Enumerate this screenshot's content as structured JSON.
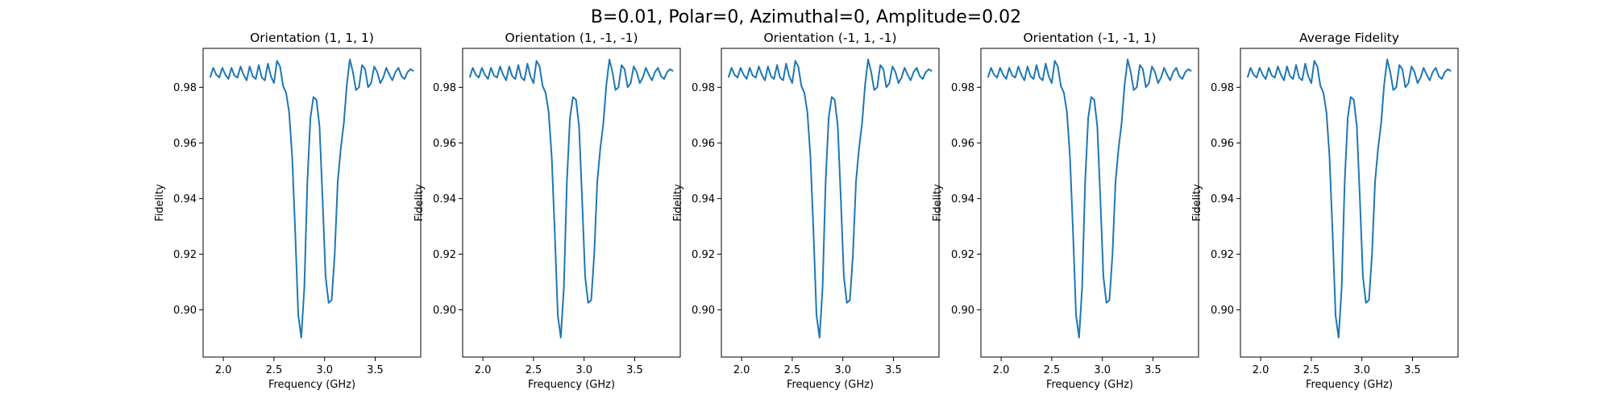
{
  "figure": {
    "suptitle": "B=0.01, Polar=0, Azimuthal=0, Amplitude=0.02"
  },
  "chart_data": [
    {
      "type": "line",
      "title": "Orientation (1, 1, 1)",
      "xlabel": "Frequency (GHz)",
      "ylabel": "Fidelity",
      "xlim": [
        1.8,
        3.95
      ],
      "ylim": [
        0.883,
        0.994
      ],
      "xticks": [
        2.0,
        2.5,
        3.0,
        3.5
      ],
      "xtick_labels": [
        "2.0",
        "2.5",
        "3.0",
        "3.5"
      ],
      "yticks": [
        0.9,
        0.92,
        0.94,
        0.96,
        0.98
      ],
      "ytick_labels": [
        "0.90",
        "0.92",
        "0.94",
        "0.96",
        "0.98"
      ],
      "grid": false,
      "series": [
        {
          "color": "#1f77b4",
          "x": [
            1.87,
            1.9,
            1.93,
            1.96,
            1.99,
            2.02,
            2.05,
            2.08,
            2.11,
            2.14,
            2.17,
            2.2,
            2.23,
            2.26,
            2.29,
            2.32,
            2.35,
            2.38,
            2.41,
            2.44,
            2.47,
            2.5,
            2.53,
            2.56,
            2.59,
            2.62,
            2.65,
            2.68,
            2.71,
            2.74,
            2.77,
            2.8,
            2.83,
            2.86,
            2.89,
            2.92,
            2.95,
            2.98,
            3.01,
            3.04,
            3.07,
            3.1,
            3.13,
            3.16,
            3.19,
            3.22,
            3.25,
            3.28,
            3.31,
            3.34,
            3.37,
            3.4,
            3.43,
            3.46,
            3.49,
            3.52,
            3.55,
            3.58,
            3.61,
            3.64,
            3.67,
            3.7,
            3.73,
            3.76,
            3.79,
            3.82,
            3.85,
            3.88
          ],
          "y": [
            0.9835,
            0.987,
            0.9845,
            0.9835,
            0.987,
            0.9845,
            0.983,
            0.987,
            0.9842,
            0.9835,
            0.9875,
            0.9845,
            0.9825,
            0.9875,
            0.984,
            0.983,
            0.988,
            0.9835,
            0.9825,
            0.9885,
            0.984,
            0.9815,
            0.9895,
            0.9875,
            0.9805,
            0.978,
            0.971,
            0.955,
            0.928,
            0.898,
            0.89,
            0.908,
            0.946,
            0.969,
            0.9765,
            0.9755,
            0.966,
            0.94,
            0.912,
            0.9025,
            0.9035,
            0.92,
            0.946,
            0.958,
            0.967,
            0.981,
            0.99,
            0.9855,
            0.979,
            0.98,
            0.988,
            0.9865,
            0.98,
            0.9815,
            0.9875,
            0.9855,
            0.9815,
            0.9835,
            0.987,
            0.9845,
            0.9825,
            0.9855,
            0.987,
            0.984,
            0.983,
            0.9855,
            0.9865,
            0.9858
          ]
        }
      ]
    },
    {
      "type": "line",
      "title": "Orientation (1, -1, -1)",
      "xlabel": "Frequency (GHz)",
      "ylabel": "Fidelity",
      "xlim": [
        1.8,
        3.95
      ],
      "ylim": [
        0.883,
        0.994
      ],
      "xticks": [
        2.0,
        2.5,
        3.0,
        3.5
      ],
      "xtick_labels": [
        "2.0",
        "2.5",
        "3.0",
        "3.5"
      ],
      "yticks": [
        0.9,
        0.92,
        0.94,
        0.96,
        0.98
      ],
      "ytick_labels": [
        "0.90",
        "0.92",
        "0.94",
        "0.96",
        "0.98"
      ],
      "grid": false,
      "series": [
        {
          "color": "#1f77b4",
          "x": [
            1.87,
            1.9,
            1.93,
            1.96,
            1.99,
            2.02,
            2.05,
            2.08,
            2.11,
            2.14,
            2.17,
            2.2,
            2.23,
            2.26,
            2.29,
            2.32,
            2.35,
            2.38,
            2.41,
            2.44,
            2.47,
            2.5,
            2.53,
            2.56,
            2.59,
            2.62,
            2.65,
            2.68,
            2.71,
            2.74,
            2.77,
            2.8,
            2.83,
            2.86,
            2.89,
            2.92,
            2.95,
            2.98,
            3.01,
            3.04,
            3.07,
            3.1,
            3.13,
            3.16,
            3.19,
            3.22,
            3.25,
            3.28,
            3.31,
            3.34,
            3.37,
            3.4,
            3.43,
            3.46,
            3.49,
            3.52,
            3.55,
            3.58,
            3.61,
            3.64,
            3.67,
            3.7,
            3.73,
            3.76,
            3.79,
            3.82,
            3.85,
            3.88
          ],
          "y": [
            0.9835,
            0.987,
            0.9845,
            0.9835,
            0.987,
            0.9845,
            0.983,
            0.987,
            0.9842,
            0.9835,
            0.9875,
            0.9845,
            0.9825,
            0.9875,
            0.984,
            0.983,
            0.988,
            0.9835,
            0.9825,
            0.9885,
            0.984,
            0.9815,
            0.9895,
            0.9875,
            0.9805,
            0.978,
            0.971,
            0.955,
            0.928,
            0.898,
            0.89,
            0.908,
            0.946,
            0.969,
            0.9765,
            0.9755,
            0.966,
            0.94,
            0.912,
            0.9025,
            0.9035,
            0.92,
            0.946,
            0.958,
            0.967,
            0.981,
            0.99,
            0.9855,
            0.979,
            0.98,
            0.988,
            0.9865,
            0.98,
            0.9815,
            0.9875,
            0.9855,
            0.9815,
            0.9835,
            0.987,
            0.9845,
            0.9825,
            0.9855,
            0.987,
            0.984,
            0.983,
            0.9855,
            0.9865,
            0.9858
          ]
        }
      ]
    },
    {
      "type": "line",
      "title": "Orientation (-1, 1, -1)",
      "xlabel": "Frequency (GHz)",
      "ylabel": "Fidelity",
      "xlim": [
        1.8,
        3.95
      ],
      "ylim": [
        0.883,
        0.994
      ],
      "xticks": [
        2.0,
        2.5,
        3.0,
        3.5
      ],
      "xtick_labels": [
        "2.0",
        "2.5",
        "3.0",
        "3.5"
      ],
      "yticks": [
        0.9,
        0.92,
        0.94,
        0.96,
        0.98
      ],
      "ytick_labels": [
        "0.90",
        "0.92",
        "0.94",
        "0.96",
        "0.98"
      ],
      "grid": false,
      "series": [
        {
          "color": "#1f77b4",
          "x": [
            1.87,
            1.9,
            1.93,
            1.96,
            1.99,
            2.02,
            2.05,
            2.08,
            2.11,
            2.14,
            2.17,
            2.2,
            2.23,
            2.26,
            2.29,
            2.32,
            2.35,
            2.38,
            2.41,
            2.44,
            2.47,
            2.5,
            2.53,
            2.56,
            2.59,
            2.62,
            2.65,
            2.68,
            2.71,
            2.74,
            2.77,
            2.8,
            2.83,
            2.86,
            2.89,
            2.92,
            2.95,
            2.98,
            3.01,
            3.04,
            3.07,
            3.1,
            3.13,
            3.16,
            3.19,
            3.22,
            3.25,
            3.28,
            3.31,
            3.34,
            3.37,
            3.4,
            3.43,
            3.46,
            3.49,
            3.52,
            3.55,
            3.58,
            3.61,
            3.64,
            3.67,
            3.7,
            3.73,
            3.76,
            3.79,
            3.82,
            3.85,
            3.88
          ],
          "y": [
            0.9835,
            0.987,
            0.9845,
            0.9835,
            0.987,
            0.9845,
            0.983,
            0.987,
            0.9842,
            0.9835,
            0.9875,
            0.9845,
            0.9825,
            0.9875,
            0.984,
            0.983,
            0.988,
            0.9835,
            0.9825,
            0.9885,
            0.984,
            0.9815,
            0.9895,
            0.9875,
            0.9805,
            0.978,
            0.971,
            0.955,
            0.928,
            0.898,
            0.89,
            0.908,
            0.946,
            0.969,
            0.9765,
            0.9755,
            0.966,
            0.94,
            0.912,
            0.9025,
            0.9035,
            0.92,
            0.946,
            0.958,
            0.967,
            0.981,
            0.99,
            0.9855,
            0.979,
            0.98,
            0.988,
            0.9865,
            0.98,
            0.9815,
            0.9875,
            0.9855,
            0.9815,
            0.9835,
            0.987,
            0.9845,
            0.9825,
            0.9855,
            0.987,
            0.984,
            0.983,
            0.9855,
            0.9865,
            0.9858
          ]
        }
      ]
    },
    {
      "type": "line",
      "title": "Orientation (-1, -1, 1)",
      "xlabel": "Frequency (GHz)",
      "ylabel": "Fidelity",
      "xlim": [
        1.8,
        3.95
      ],
      "ylim": [
        0.883,
        0.994
      ],
      "xticks": [
        2.0,
        2.5,
        3.0,
        3.5
      ],
      "xtick_labels": [
        "2.0",
        "2.5",
        "3.0",
        "3.5"
      ],
      "yticks": [
        0.9,
        0.92,
        0.94,
        0.96,
        0.98
      ],
      "ytick_labels": [
        "0.90",
        "0.92",
        "0.94",
        "0.96",
        "0.98"
      ],
      "grid": false,
      "series": [
        {
          "color": "#1f77b4",
          "x": [
            1.87,
            1.9,
            1.93,
            1.96,
            1.99,
            2.02,
            2.05,
            2.08,
            2.11,
            2.14,
            2.17,
            2.2,
            2.23,
            2.26,
            2.29,
            2.32,
            2.35,
            2.38,
            2.41,
            2.44,
            2.47,
            2.5,
            2.53,
            2.56,
            2.59,
            2.62,
            2.65,
            2.68,
            2.71,
            2.74,
            2.77,
            2.8,
            2.83,
            2.86,
            2.89,
            2.92,
            2.95,
            2.98,
            3.01,
            3.04,
            3.07,
            3.1,
            3.13,
            3.16,
            3.19,
            3.22,
            3.25,
            3.28,
            3.31,
            3.34,
            3.37,
            3.4,
            3.43,
            3.46,
            3.49,
            3.52,
            3.55,
            3.58,
            3.61,
            3.64,
            3.67,
            3.7,
            3.73,
            3.76,
            3.79,
            3.82,
            3.85,
            3.88
          ],
          "y": [
            0.9835,
            0.987,
            0.9845,
            0.9835,
            0.987,
            0.9845,
            0.983,
            0.987,
            0.9842,
            0.9835,
            0.9875,
            0.9845,
            0.9825,
            0.9875,
            0.984,
            0.983,
            0.988,
            0.9835,
            0.9825,
            0.9885,
            0.984,
            0.9815,
            0.9895,
            0.9875,
            0.9805,
            0.978,
            0.971,
            0.955,
            0.928,
            0.898,
            0.89,
            0.908,
            0.946,
            0.969,
            0.9765,
            0.9755,
            0.966,
            0.94,
            0.912,
            0.9025,
            0.9035,
            0.92,
            0.946,
            0.958,
            0.967,
            0.981,
            0.99,
            0.9855,
            0.979,
            0.98,
            0.988,
            0.9865,
            0.98,
            0.9815,
            0.9875,
            0.9855,
            0.9815,
            0.9835,
            0.987,
            0.9845,
            0.9825,
            0.9855,
            0.987,
            0.984,
            0.983,
            0.9855,
            0.9865,
            0.9858
          ]
        }
      ]
    },
    {
      "type": "line",
      "title": "Average Fidelity",
      "xlabel": "Frequency (GHz)",
      "ylabel": "Fidelity",
      "xlim": [
        1.8,
        3.95
      ],
      "ylim": [
        0.883,
        0.994
      ],
      "xticks": [
        2.0,
        2.5,
        3.0,
        3.5
      ],
      "xtick_labels": [
        "2.0",
        "2.5",
        "3.0",
        "3.5"
      ],
      "yticks": [
        0.9,
        0.92,
        0.94,
        0.96,
        0.98
      ],
      "ytick_labels": [
        "0.90",
        "0.92",
        "0.94",
        "0.96",
        "0.98"
      ],
      "grid": false,
      "series": [
        {
          "color": "#1f77b4",
          "x": [
            1.87,
            1.9,
            1.93,
            1.96,
            1.99,
            2.02,
            2.05,
            2.08,
            2.11,
            2.14,
            2.17,
            2.2,
            2.23,
            2.26,
            2.29,
            2.32,
            2.35,
            2.38,
            2.41,
            2.44,
            2.47,
            2.5,
            2.53,
            2.56,
            2.59,
            2.62,
            2.65,
            2.68,
            2.71,
            2.74,
            2.77,
            2.8,
            2.83,
            2.86,
            2.89,
            2.92,
            2.95,
            2.98,
            3.01,
            3.04,
            3.07,
            3.1,
            3.13,
            3.16,
            3.19,
            3.22,
            3.25,
            3.28,
            3.31,
            3.34,
            3.37,
            3.4,
            3.43,
            3.46,
            3.49,
            3.52,
            3.55,
            3.58,
            3.61,
            3.64,
            3.67,
            3.7,
            3.73,
            3.76,
            3.79,
            3.82,
            3.85,
            3.88
          ],
          "y": [
            0.9835,
            0.987,
            0.9845,
            0.9835,
            0.987,
            0.9845,
            0.983,
            0.987,
            0.9842,
            0.9835,
            0.9875,
            0.9845,
            0.9825,
            0.9875,
            0.984,
            0.983,
            0.988,
            0.9835,
            0.9825,
            0.9885,
            0.984,
            0.9815,
            0.9895,
            0.9875,
            0.9805,
            0.978,
            0.971,
            0.955,
            0.928,
            0.898,
            0.89,
            0.908,
            0.946,
            0.969,
            0.9765,
            0.9755,
            0.966,
            0.94,
            0.912,
            0.9025,
            0.9035,
            0.92,
            0.946,
            0.958,
            0.967,
            0.981,
            0.99,
            0.9855,
            0.979,
            0.98,
            0.988,
            0.9865,
            0.98,
            0.9815,
            0.9875,
            0.9855,
            0.9815,
            0.9835,
            0.987,
            0.9845,
            0.9825,
            0.9855,
            0.987,
            0.984,
            0.983,
            0.9855,
            0.9865,
            0.9858
          ]
        }
      ]
    }
  ]
}
